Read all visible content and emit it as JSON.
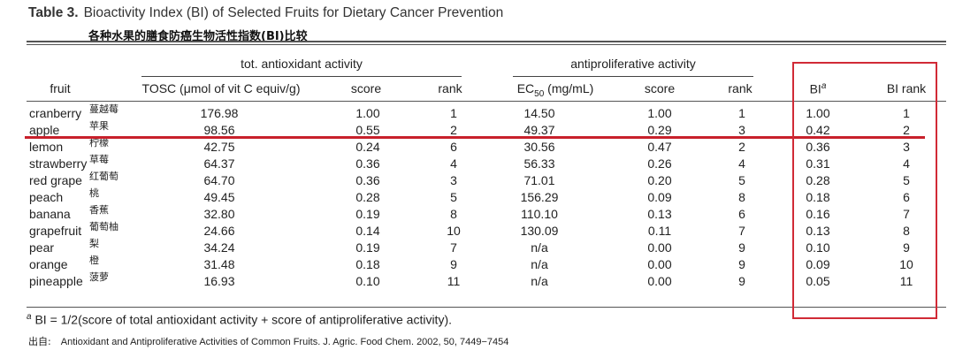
{
  "title": {
    "label": "Table 3.",
    "text": "Bioactivity Index (BI) of Selected Fruits for Dietary Cancer Prevention",
    "cn": "各种水果的膳食防癌生物活性指数(BI)比较"
  },
  "groups": {
    "antioxidant": "tot. antioxidant activity",
    "antiproliferative": "antiproliferative activity"
  },
  "headers": {
    "fruit": "fruit",
    "tosc": "TOSC (μmol of vit C equiv/g)",
    "score1": "score",
    "rank1": "rank",
    "ec50_prefix": "EC",
    "ec50_sub": "50",
    "ec50_suffix": " (mg/mL)",
    "score2": "score",
    "rank2": "rank",
    "bi": "BI",
    "bi_sup": "a",
    "birank": "BI rank"
  },
  "rows": [
    {
      "fruit": "cranberry",
      "cn": "蔓越莓",
      "tosc": "176.98",
      "s1": "1.00",
      "r1": "1",
      "ec50": "14.50",
      "s2": "1.00",
      "r2": "1",
      "bi": "1.00",
      "birank": "1"
    },
    {
      "fruit": "apple",
      "cn": "苹果",
      "tosc": "98.56",
      "s1": "0.55",
      "r1": "2",
      "ec50": "49.37",
      "s2": "0.29",
      "r2": "3",
      "bi": "0.42",
      "birank": "2"
    },
    {
      "fruit": "lemon",
      "cn": "柠檬",
      "tosc": "42.75",
      "s1": "0.24",
      "r1": "6",
      "ec50": "30.56",
      "s2": "0.47",
      "r2": "2",
      "bi": "0.36",
      "birank": "3"
    },
    {
      "fruit": "strawberry",
      "cn": "草莓",
      "tosc": "64.37",
      "s1": "0.36",
      "r1": "4",
      "ec50": "56.33",
      "s2": "0.26",
      "r2": "4",
      "bi": "0.31",
      "birank": "4"
    },
    {
      "fruit": "red grape",
      "cn": "红葡萄",
      "tosc": "64.70",
      "s1": "0.36",
      "r1": "3",
      "ec50": "71.01",
      "s2": "0.20",
      "r2": "5",
      "bi": "0.28",
      "birank": "5"
    },
    {
      "fruit": "peach",
      "cn": "桃",
      "tosc": "49.45",
      "s1": "0.28",
      "r1": "5",
      "ec50": "156.29",
      "s2": "0.09",
      "r2": "8",
      "bi": "0.18",
      "birank": "6"
    },
    {
      "fruit": "banana",
      "cn": "香蕉",
      "tosc": "32.80",
      "s1": "0.19",
      "r1": "8",
      "ec50": "110.10",
      "s2": "0.13",
      "r2": "6",
      "bi": "0.16",
      "birank": "7"
    },
    {
      "fruit": "grapefruit",
      "cn": "葡萄柚",
      "tosc": "24.66",
      "s1": "0.14",
      "r1": "10",
      "ec50": "130.09",
      "s2": "0.11",
      "r2": "7",
      "bi": "0.13",
      "birank": "8"
    },
    {
      "fruit": "pear",
      "cn": "梨",
      "tosc": "34.24",
      "s1": "0.19",
      "r1": "7",
      "ec50": "n/a",
      "s2": "0.00",
      "r2": "9",
      "bi": "0.10",
      "birank": "9"
    },
    {
      "fruit": "orange",
      "cn": "橙",
      "tosc": "31.48",
      "s1": "0.18",
      "r1": "9",
      "ec50": "n/a",
      "s2": "0.00",
      "r2": "9",
      "bi": "0.09",
      "birank": "10"
    },
    {
      "fruit": "pineapple",
      "cn": "菠萝",
      "tosc": "16.93",
      "s1": "0.10",
      "r1": "11",
      "ec50": "n/a",
      "s2": "0.00",
      "r2": "9",
      "bi": "0.05",
      "birank": "11"
    }
  ],
  "footnote": {
    "sup": "a",
    "text": " BI = 1/2(score of total antioxidant activity + score of antiproliferative activity)."
  },
  "source": {
    "label": "出自:",
    "text": "Antioxidant and Antiproliferative Activities of Common Fruits. J. Agric. Food Chem. 2002, 50, 7449−7454"
  },
  "highlight_color": "#d12a36"
}
